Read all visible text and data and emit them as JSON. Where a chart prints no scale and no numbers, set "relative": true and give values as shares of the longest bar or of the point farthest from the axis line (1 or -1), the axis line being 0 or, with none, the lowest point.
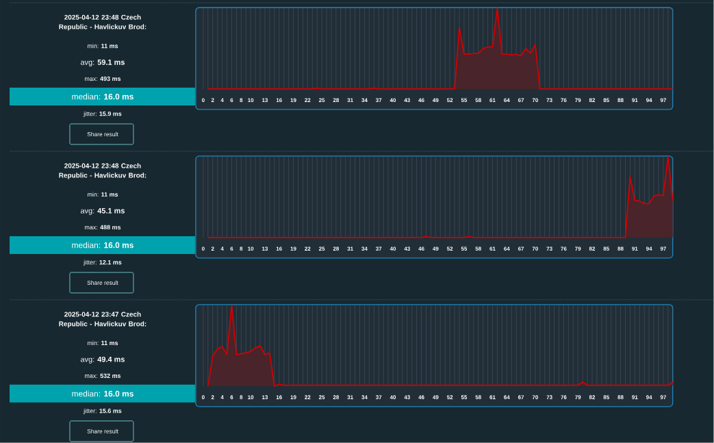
{
  "chart_data": [
    {
      "type": "other",
      "title": "2025-04-12 23:48 Czech Republic - Havlickuv Brod:",
      "annotations": [
        "min: **11 ms**",
        "avg: **59.1 ms**",
        "max: **493 ms**",
        "median: **16.0 ms**",
        "jitter: **15.9 ms**",
        "Share result"
      ]
    },
    {
      "type": "area",
      "color": "#d40000",
      "relative": true,
      "grid": "x",
      "categories": [
        "0",
        null,
        "2",
        null,
        "4",
        null,
        "6",
        null,
        "8",
        null,
        "10",
        null,
        null,
        "13",
        null,
        null,
        "16",
        null,
        null,
        "19",
        null,
        null,
        "22",
        null,
        null,
        "25",
        null,
        null,
        "28",
        null,
        null,
        "31",
        null,
        null,
        "34",
        null,
        null,
        "37",
        null,
        null,
        "40",
        null,
        null,
        "43",
        null,
        null,
        "46",
        null,
        null,
        "49",
        null,
        null,
        "52",
        null,
        null,
        "55",
        null,
        null,
        "58",
        null,
        null,
        "61",
        null,
        null,
        "64",
        null,
        null,
        "67",
        null,
        null,
        "70",
        null,
        null,
        "73",
        null,
        null,
        "76",
        null,
        null,
        "79",
        null,
        null,
        "82",
        null,
        null,
        "85",
        null,
        null,
        "88",
        null,
        null,
        "91",
        null,
        null,
        "94",
        null,
        null,
        "97",
        null,
        null
      ],
      "values": [
        null,
        0,
        0,
        0,
        0,
        0,
        0,
        0,
        0,
        0,
        0,
        0,
        0,
        0,
        0,
        0,
        0,
        0,
        0,
        0,
        0,
        0,
        0,
        0,
        0.01,
        0,
        0,
        0,
        0,
        0,
        0,
        0,
        0,
        0,
        0,
        0,
        0.01,
        0,
        0,
        0,
        0,
        0,
        0,
        0,
        0,
        0,
        0,
        0,
        0,
        0,
        0,
        0,
        0,
        0,
        0.76,
        0.43,
        0.43,
        0.44,
        0.44,
        0.5,
        0.52,
        0.52,
        1,
        0.43,
        0.43,
        0.42,
        0.43,
        0.41,
        0.5,
        0.44,
        0.55,
        0,
        0,
        0,
        0,
        0,
        0,
        0,
        0,
        0,
        0,
        0,
        0,
        0,
        0,
        0,
        0,
        0,
        0,
        0,
        0,
        0,
        0,
        0,
        0,
        0,
        0,
        0,
        0,
        0
      ]
    },
    {
      "type": "other",
      "title": "2025-04-12 23:48 Czech Republic - Havlickuv Brod:",
      "annotations": [
        "min: **11 ms**",
        "avg: **45.1 ms**",
        "max: **488 ms**",
        "median: **16.0 ms**",
        "jitter: **12.1 ms**",
        "Share result"
      ]
    },
    {
      "type": "area",
      "color": "#d40000",
      "relative": true,
      "grid": "x",
      "categories": [
        "0",
        null,
        "2",
        null,
        "4",
        null,
        "6",
        null,
        "8",
        null,
        "10",
        null,
        null,
        "13",
        null,
        null,
        "16",
        null,
        null,
        "19",
        null,
        null,
        "22",
        null,
        null,
        "25",
        null,
        null,
        "28",
        null,
        null,
        "31",
        null,
        null,
        "34",
        null,
        null,
        "37",
        null,
        null,
        "40",
        null,
        null,
        "43",
        null,
        null,
        "46",
        null,
        null,
        "49",
        null,
        null,
        "52",
        null,
        null,
        "55",
        null,
        null,
        "58",
        null,
        null,
        "61",
        null,
        null,
        "64",
        null,
        null,
        "67",
        null,
        null,
        "70",
        null,
        null,
        "73",
        null,
        null,
        "76",
        null,
        null,
        "79",
        null,
        null,
        "82",
        null,
        null,
        "85",
        null,
        null,
        "88",
        null,
        null,
        "91",
        null,
        null,
        "94",
        null,
        null,
        "97",
        null,
        null
      ],
      "values": [
        null,
        0,
        0,
        0,
        0,
        0,
        0,
        0,
        0,
        0,
        0,
        0,
        0,
        0,
        0,
        0,
        0,
        0,
        0,
        0,
        0,
        0,
        0,
        0,
        0,
        0,
        0,
        0,
        0,
        0,
        0,
        0,
        0,
        0,
        0,
        0,
        0,
        0,
        0,
        0,
        0,
        0,
        0,
        0,
        0,
        0,
        0,
        0.01,
        0,
        0,
        0,
        0,
        0,
        0,
        0,
        0,
        0.01,
        0,
        0,
        0,
        0,
        0,
        0,
        0,
        0,
        0,
        0,
        0,
        0,
        0,
        0,
        0,
        0,
        0,
        0,
        0,
        0,
        0,
        0,
        0,
        0,
        0,
        0,
        0,
        0,
        0,
        0,
        0,
        0,
        0,
        0.75,
        0.46,
        0.45,
        0.42,
        0.42,
        0.51,
        0.53,
        0.52,
        1,
        0.46
      ]
    },
    {
      "type": "other",
      "title": "2025-04-12 23:47 Czech Republic - Havlickuv Brod:",
      "annotations": [
        "min: **11 ms**",
        "avg: **49.4 ms**",
        "max: **532 ms**",
        "median: **16.0 ms**",
        "jitter: **15.6 ms**",
        "Share result"
      ]
    },
    {
      "type": "area",
      "color": "#d40000",
      "relative": true,
      "grid": "x",
      "categories": [
        "0",
        null,
        "2",
        null,
        "4",
        null,
        "6",
        null,
        "8",
        null,
        "10",
        null,
        null,
        "13",
        null,
        null,
        "16",
        null,
        null,
        "19",
        null,
        null,
        "22",
        null,
        null,
        "25",
        null,
        null,
        "28",
        null,
        null,
        "31",
        null,
        null,
        "34",
        null,
        null,
        "37",
        null,
        null,
        "40",
        null,
        null,
        "43",
        null,
        null,
        "46",
        null,
        null,
        "49",
        null,
        null,
        "52",
        null,
        null,
        "55",
        null,
        null,
        "58",
        null,
        null,
        "61",
        null,
        null,
        "64",
        null,
        null,
        "67",
        null,
        null,
        "70",
        null,
        null,
        "73",
        null,
        null,
        "76",
        null,
        null,
        "79",
        null,
        null,
        "82",
        null,
        null,
        "85",
        null,
        null,
        "88",
        null,
        null,
        "91",
        null,
        null,
        "94",
        null,
        null,
        "97",
        null,
        null
      ],
      "values": [
        null,
        0,
        0.37,
        0.46,
        0.49,
        0.39,
        1,
        0.39,
        0.4,
        0.41,
        0.43,
        0.47,
        0.5,
        0.39,
        0.41,
        0,
        0.02,
        0.01,
        0.01,
        0.01,
        0.01,
        0.01,
        0.01,
        0.01,
        0.01,
        0.01,
        0.01,
        0.01,
        0.01,
        0.01,
        0.01,
        0.01,
        0.01,
        0.01,
        0.01,
        0.01,
        0.01,
        0.01,
        0.01,
        0.01,
        0.01,
        0.01,
        0.01,
        0.01,
        0.01,
        0.01,
        0.01,
        0.01,
        0.01,
        0.01,
        0.01,
        0.01,
        0.01,
        0.01,
        0.01,
        0.01,
        0.01,
        0.01,
        0.01,
        0.01,
        0.01,
        0.01,
        0.01,
        0.01,
        0.01,
        0.01,
        0.01,
        0.01,
        0.01,
        0.01,
        0.01,
        0.01,
        0.01,
        0.01,
        0.01,
        0.01,
        0.01,
        0.01,
        0.01,
        0.01,
        0.05,
        0.01,
        0.01,
        0.01,
        0.01,
        0.01,
        0.01,
        0.01,
        0.01,
        0.01,
        0.01,
        0.01,
        0.01,
        0.01,
        0.01,
        0.01,
        0.01,
        0.01,
        0.01,
        0.05
      ]
    }
  ]
}
